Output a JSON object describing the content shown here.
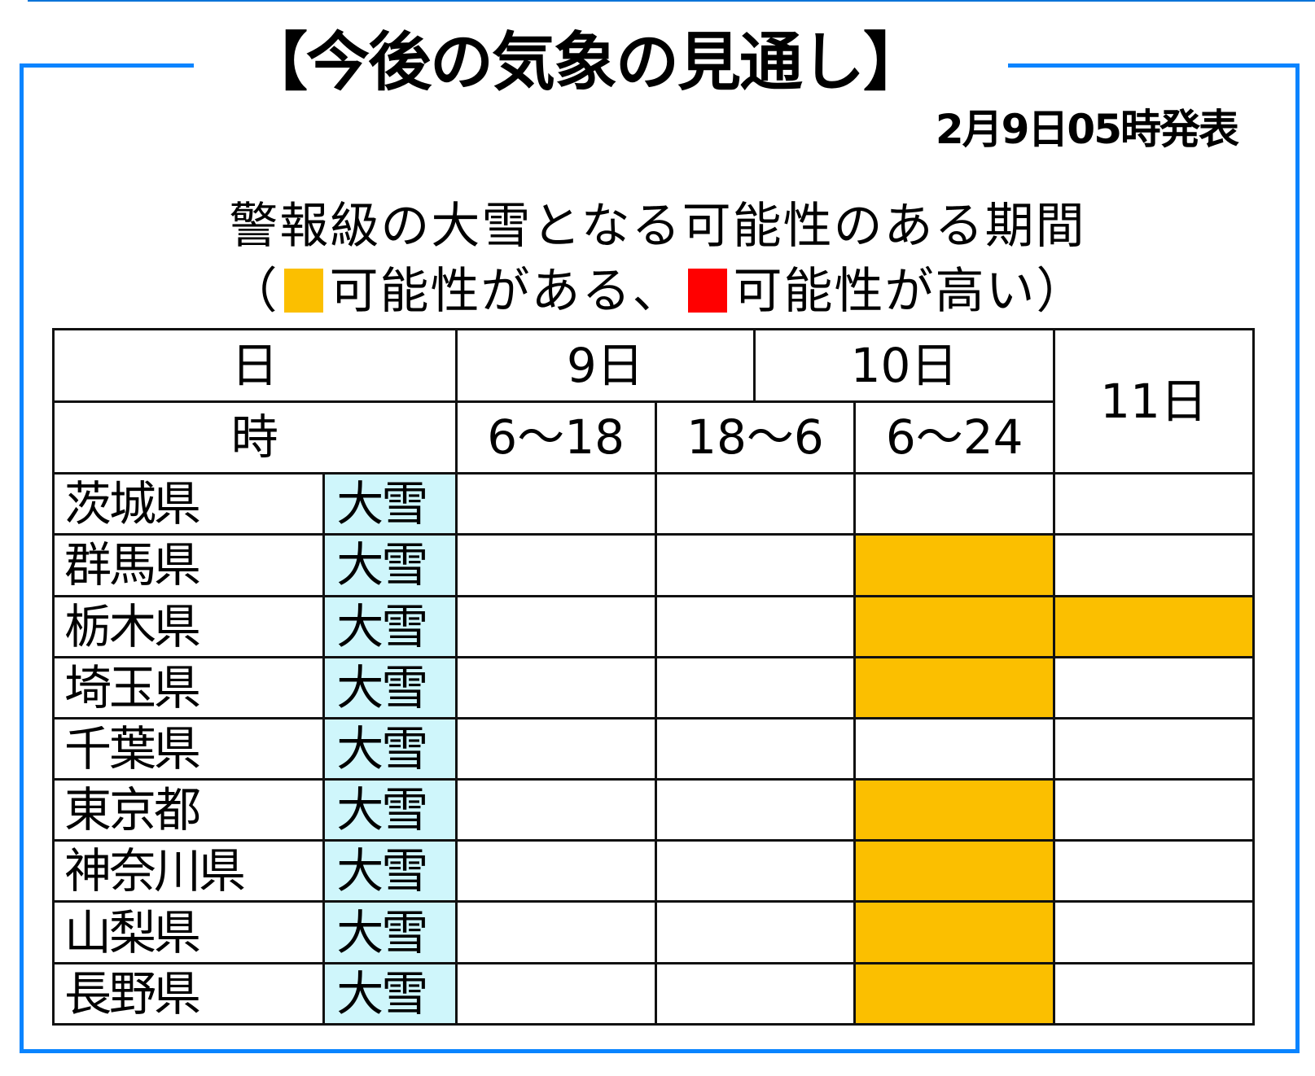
{
  "title": "【今後の気象の見通し】",
  "issued": "2月9日05時発表",
  "subtitle": "警報級の大雪となる可能性のある期間",
  "legend": {
    "open_paren": "（",
    "items": [
      {
        "label": "可能性がある、",
        "color": "#fbbf00",
        "level": "possible"
      },
      {
        "label": "可能性が高い",
        "color": "#ff0000",
        "level": "high"
      }
    ],
    "close_paren": "）"
  },
  "colors": {
    "frame": "#0a84ff",
    "possible": "#fbbf00",
    "high": "#ff0000",
    "phenomenon_bg": "#cff6fb"
  },
  "table": {
    "header_day_label": "日",
    "header_time_label": "時",
    "days": [
      {
        "label": "9日"
      },
      {
        "label": "10日"
      },
      {
        "label": "11日"
      }
    ],
    "periods": [
      "6～18",
      "18～6",
      "6～24"
    ],
    "rows": [
      {
        "prefecture": "茨城県",
        "phenomenon": "大雪",
        "cells": [
          "none",
          "none",
          "none",
          "none"
        ]
      },
      {
        "prefecture": "群馬県",
        "phenomenon": "大雪",
        "cells": [
          "none",
          "none",
          "possible",
          "none"
        ]
      },
      {
        "prefecture": "栃木県",
        "phenomenon": "大雪",
        "cells": [
          "none",
          "none",
          "possible",
          "possible"
        ]
      },
      {
        "prefecture": "埼玉県",
        "phenomenon": "大雪",
        "cells": [
          "none",
          "none",
          "possible",
          "none"
        ]
      },
      {
        "prefecture": "千葉県",
        "phenomenon": "大雪",
        "cells": [
          "none",
          "none",
          "none",
          "none"
        ]
      },
      {
        "prefecture": "東京都",
        "phenomenon": "大雪",
        "cells": [
          "none",
          "none",
          "possible",
          "none"
        ]
      },
      {
        "prefecture": "神奈川県",
        "phenomenon": "大雪",
        "cells": [
          "none",
          "none",
          "possible",
          "none"
        ]
      },
      {
        "prefecture": "山梨県",
        "phenomenon": "大雪",
        "cells": [
          "none",
          "none",
          "possible",
          "none"
        ]
      },
      {
        "prefecture": "長野県",
        "phenomenon": "大雪",
        "cells": [
          "none",
          "none",
          "possible",
          "none"
        ]
      }
    ]
  }
}
